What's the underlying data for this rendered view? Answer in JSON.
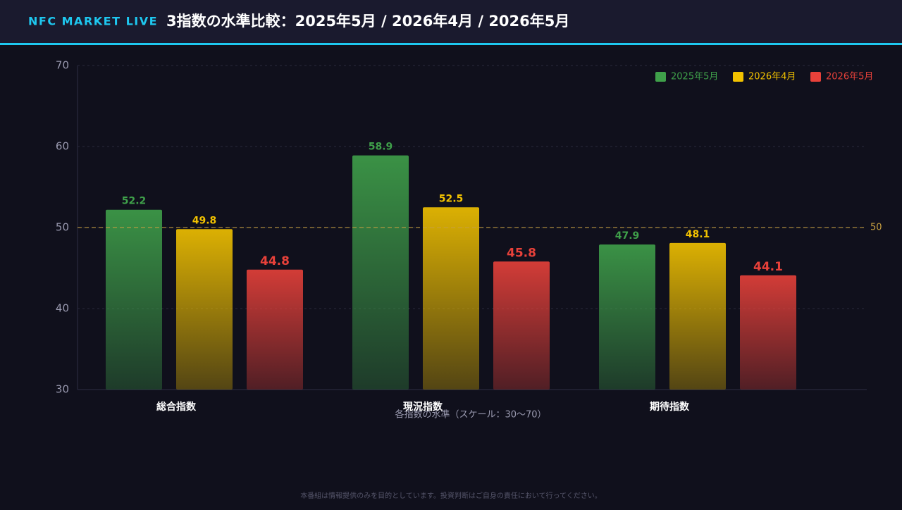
{
  "header": {
    "brand": "NFC MARKET LIVE"
  },
  "chart_data": {
    "type": "bar",
    "title": "3指数の水準比較：2025年5月 / 2026年4月 / 2026年5月",
    "x_label": "各指数の水準（スケール：30〜70）",
    "categories": [
      "総合指数",
      "現況指数",
      "期待指数"
    ],
    "series": [
      {
        "name": "2025年5月",
        "color": "#3fa04a",
        "values": [
          52.2,
          58.9,
          47.9
        ]
      },
      {
        "name": "2026年4月",
        "color": "#f2c200",
        "values": [
          49.8,
          52.5,
          48.1
        ]
      },
      {
        "name": "2026年5月",
        "color": "#e8413a",
        "values": [
          44.8,
          45.8,
          44.1
        ]
      }
    ],
    "ylim": [
      30,
      70
    ],
    "yticks": [
      30,
      40,
      50,
      60,
      70
    ],
    "grid": true,
    "reference_line": 50,
    "legend": "top-right"
  },
  "footer": {
    "disclaimer": "本番組は情報提供のみを目的としています。投資判断はご自身の責任において行ってください。"
  }
}
